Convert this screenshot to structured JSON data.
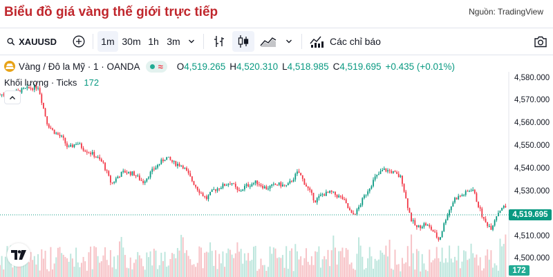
{
  "header": {
    "title": "Biểu đồ giá vàng thế giới trực tiếp",
    "source": "Nguồn: TradingView"
  },
  "toolbar": {
    "symbol": "XAUUSD",
    "intervals": [
      "1m",
      "30m",
      "1h",
      "3m"
    ],
    "active_interval": "1m",
    "indicators_label": "Các chỉ báo"
  },
  "legend": {
    "name": "Vàng / Đô la Mỹ · 1 · OANDA",
    "wave": "≈",
    "open_key": "O",
    "open": "4,519.265",
    "high_key": "H",
    "high": "4,520.310",
    "low_key": "L",
    "low": "4,518.985",
    "close_key": "C",
    "close": "4,519.695",
    "change": "+0.435 (+0.01%)"
  },
  "volume_legend": {
    "label": "Khối lượng · Ticks",
    "value": "172"
  },
  "price_axis": {
    "labels": [
      "4,580.000",
      "4,570.000",
      "4,560.000",
      "4,550.000",
      "4,540.000",
      "4,530.000",
      "4,510.000",
      "4,500.000"
    ],
    "current_price": "4,519.695",
    "current_volume": "172"
  },
  "colors": {
    "up": "#089981",
    "down": "#f23645",
    "title": "#c0272d"
  },
  "chart_data": {
    "type": "candlestick",
    "interval": "1m",
    "ylim": [
      4496,
      4585
    ],
    "price_trace": [
      [
        0,
        4574
      ],
      [
        20,
        4575
      ],
      [
        40,
        4577
      ],
      [
        55,
        4578
      ],
      [
        62,
        4568
      ],
      [
        68,
        4560
      ],
      [
        75,
        4557
      ],
      [
        82,
        4555
      ],
      [
        90,
        4553
      ],
      [
        98,
        4548
      ],
      [
        110,
        4551
      ],
      [
        120,
        4548
      ],
      [
        135,
        4545
      ],
      [
        148,
        4541
      ],
      [
        155,
        4535
      ],
      [
        160,
        4531
      ],
      [
        170,
        4535
      ],
      [
        178,
        4537
      ],
      [
        192,
        4536
      ],
      [
        205,
        4532
      ],
      [
        220,
        4538
      ],
      [
        238,
        4544
      ],
      [
        250,
        4541
      ],
      [
        262,
        4540
      ],
      [
        275,
        4533
      ],
      [
        285,
        4528
      ],
      [
        296,
        4524
      ],
      [
        306,
        4528
      ],
      [
        318,
        4530
      ],
      [
        332,
        4532
      ],
      [
        342,
        4527
      ],
      [
        352,
        4530
      ],
      [
        368,
        4532
      ],
      [
        382,
        4529
      ],
      [
        398,
        4531
      ],
      [
        412,
        4530
      ],
      [
        428,
        4537
      ],
      [
        438,
        4531
      ],
      [
        452,
        4523
      ],
      [
        462,
        4526
      ],
      [
        475,
        4527
      ],
      [
        492,
        4524
      ],
      [
        505,
        4516
      ],
      [
        512,
        4518
      ],
      [
        524,
        4526
      ],
      [
        538,
        4534
      ],
      [
        550,
        4538
      ],
      [
        562,
        4537
      ],
      [
        576,
        4534
      ],
      [
        583,
        4523
      ],
      [
        590,
        4514
      ],
      [
        598,
        4510
      ],
      [
        610,
        4512
      ],
      [
        620,
        4509
      ],
      [
        630,
        4504
      ],
      [
        640,
        4515
      ],
      [
        652,
        4524
      ],
      [
        665,
        4526
      ],
      [
        678,
        4529
      ],
      [
        686,
        4521
      ],
      [
        695,
        4513
      ],
      [
        705,
        4510
      ],
      [
        712,
        4516
      ],
      [
        720,
        4520
      ],
      [
        728,
        4519.7
      ]
    ],
    "x_extent": [
      0,
      728
    ]
  }
}
